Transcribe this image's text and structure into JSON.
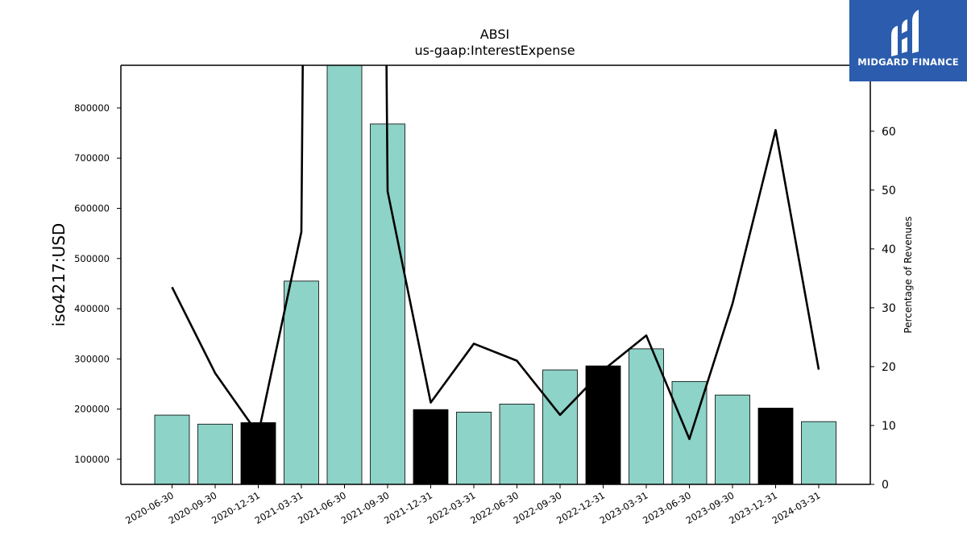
{
  "chart_data": {
    "type": "bar",
    "title": "ABSI",
    "subtitle": "us-gaap:InterestExpense",
    "ylabel": "iso4217:USD",
    "y2label": "Percentage of Revenues",
    "categories": [
      "2020-06-30",
      "2020-09-30",
      "2020-12-31",
      "2021-03-31",
      "2021-06-30",
      "2021-09-30",
      "2021-12-31",
      "2022-03-31",
      "2022-06-30",
      "2022-09-30",
      "2022-12-31",
      "2023-03-31",
      "2023-06-30",
      "2023-09-30",
      "2023-12-31",
      "2024-03-31"
    ],
    "values": [
      188000,
      170000,
      173000,
      455000,
      890000,
      768000,
      199000,
      194000,
      210000,
      278000,
      286000,
      320000,
      255000,
      228000,
      202000,
      175000
    ],
    "bar_colors": [
      "#8dd3c7",
      "#8dd3c7",
      "#000000",
      "#8dd3c7",
      "#8dd3c7",
      "#8dd3c7",
      "#000000",
      "#8dd3c7",
      "#8dd3c7",
      "#8dd3c7",
      "#000000",
      "#8dd3c7",
      "#8dd3c7",
      "#8dd3c7",
      "#000000",
      "#8dd3c7"
    ],
    "ylim": [
      50000,
      885000
    ],
    "yticks": [
      100000,
      200000,
      300000,
      400000,
      500000,
      600000,
      700000,
      800000
    ],
    "line_series": {
      "name": "",
      "values": [
        33.5,
        18.9,
        8.5,
        42.9,
        150,
        150,
        49.8,
        13.9,
        23.9,
        21.0,
        11.8,
        19.4,
        25.3,
        7.7,
        30.7,
        60.2,
        19.5
      ],
      "x_positions": [
        0,
        1,
        2,
        3,
        3.12,
        4.88,
        5,
        6,
        7,
        8,
        9,
        10,
        11,
        12,
        13,
        14,
        15
      ]
    },
    "y2lim": [
      0,
      71.2
    ],
    "y2ticks": [
      0,
      10,
      20,
      30,
      40,
      50,
      60
    ],
    "grid": false,
    "legend": "none"
  },
  "logo": {
    "text": "MIDGARD FINANCE",
    "background": "#2b5cad"
  }
}
